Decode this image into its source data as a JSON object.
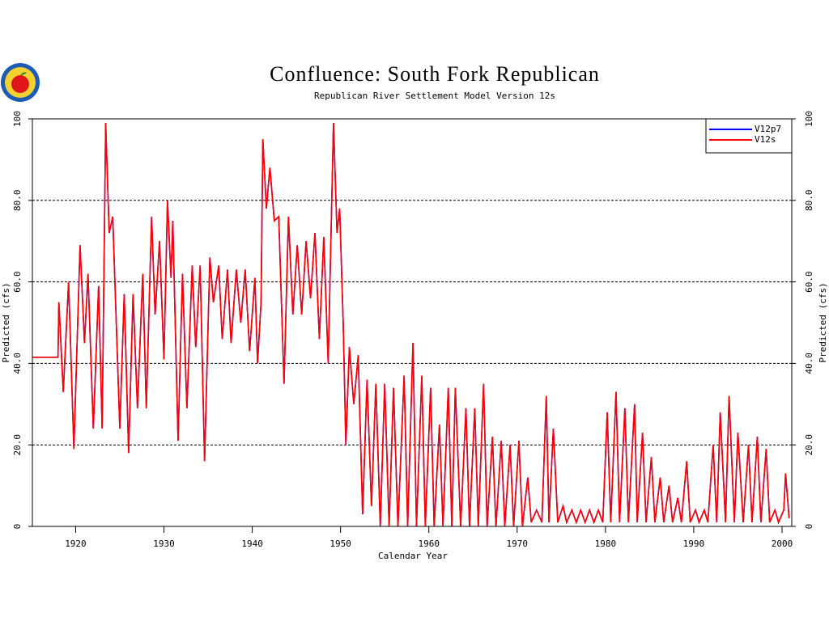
{
  "chart_data": {
    "type": "line",
    "title": "Confluence: South Fork Republican",
    "subtitle": "Republican River Settlement Model Version 12s",
    "xlabel": "Calendar Year",
    "ylabel": "Predicted (cfs)",
    "y2label": "Predicted (cfs)",
    "xlim": [
      1915.1,
      2001.1
    ],
    "xticks": [
      1920,
      1930,
      1940,
      1950,
      1960,
      1970,
      1980,
      1990,
      2000
    ],
    "ylim": [
      0,
      100
    ],
    "yticks": [
      0,
      {
        "value": 20,
        "label": "20.0"
      },
      {
        "value": 40,
        "label": "40.0"
      },
      {
        "value": 60,
        "label": "60.0"
      },
      {
        "value": 80,
        "label": "80.0"
      },
      100
    ],
    "y2lim": [
      0,
      100
    ],
    "y2ticks": [
      0,
      {
        "value": 20,
        "label": "20.0"
      },
      {
        "value": 40,
        "label": "40.0"
      },
      {
        "value": 60,
        "label": "60.0"
      },
      {
        "value": 80,
        "label": "80.0"
      },
      100
    ],
    "grid": true,
    "legend": "upper right",
    "x": [
      1915.1,
      1918.0,
      1918.1,
      1918.6,
      1919.2,
      1919.8,
      1920.5,
      1921.0,
      1921.4,
      1922.0,
      1922.6,
      1923.0,
      1923.4,
      1923.8,
      1924.2,
      1925.0,
      1925.5,
      1926.0,
      1926.5,
      1927.0,
      1927.6,
      1928.0,
      1928.6,
      1929.0,
      1929.5,
      1930.0,
      1930.4,
      1930.8,
      1931.0,
      1931.6,
      1932.1,
      1932.6,
      1933.2,
      1933.6,
      1934.1,
      1934.6,
      1935.2,
      1935.6,
      1936.2,
      1936.6,
      1937.2,
      1937.6,
      1938.2,
      1938.7,
      1939.2,
      1939.7,
      1940.3,
      1940.6,
      1941.0,
      1941.2,
      1941.6,
      1942.0,
      1942.5,
      1943.0,
      1943.6,
      1944.1,
      1944.6,
      1945.1,
      1945.6,
      1946.1,
      1946.6,
      1947.1,
      1947.6,
      1948.1,
      1948.6,
      1949.2,
      1949.6,
      1949.9,
      1950.3,
      1950.6,
      1951.0,
      1951.5,
      1952.0,
      1952.5,
      1953.0,
      1953.5,
      1954.0,
      1954.5,
      1955.0,
      1955.5,
      1956.0,
      1956.5,
      1957.2,
      1957.6,
      1958.2,
      1958.6,
      1959.2,
      1959.6,
      1960.2,
      1960.6,
      1961.2,
      1961.6,
      1962.2,
      1962.6,
      1963.0,
      1963.6,
      1964.2,
      1964.6,
      1965.2,
      1965.6,
      1966.2,
      1966.6,
      1967.2,
      1967.6,
      1968.2,
      1968.6,
      1969.2,
      1969.6,
      1970.2,
      1970.6,
      1971.2,
      1971.6,
      1972.2,
      1972.8,
      1973.3,
      1973.6,
      1974.1,
      1974.6,
      1975.2,
      1975.6,
      1976.2,
      1976.7,
      1977.2,
      1977.7,
      1978.2,
      1978.7,
      1979.2,
      1979.7,
      1980.2,
      1980.6,
      1981.2,
      1981.6,
      1982.2,
      1982.6,
      1983.3,
      1983.6,
      1984.2,
      1984.6,
      1985.2,
      1985.6,
      1986.2,
      1986.6,
      1987.2,
      1987.6,
      1988.2,
      1988.6,
      1989.2,
      1989.6,
      1990.2,
      1990.6,
      1991.2,
      1991.6,
      1992.2,
      1992.6,
      1993.0,
      1993.6,
      1994.0,
      1994.6,
      1995.0,
      1995.6,
      1996.2,
      1996.6,
      1997.2,
      1997.6,
      1998.2,
      1998.6,
      1999.2,
      1999.6,
      2000.2,
      2000.4,
      2000.8
    ],
    "series": [
      {
        "name": "V12p7",
        "color": "#0000ff",
        "values": [
          41.5,
          41.5,
          55,
          33,
          60,
          19,
          69,
          45,
          62,
          24,
          59,
          24,
          99,
          72,
          76,
          24,
          57,
          18,
          57,
          29,
          62,
          29,
          76,
          52,
          70,
          41,
          80,
          61,
          75,
          21,
          62,
          29,
          64,
          44,
          64,
          16,
          66,
          55,
          64,
          46,
          63,
          45,
          63,
          50,
          63,
          43,
          61,
          40,
          55,
          95,
          78,
          88,
          75,
          76,
          35,
          76,
          52,
          69,
          52,
          70,
          56,
          72,
          46,
          71,
          40,
          99,
          72,
          78,
          50,
          20,
          44,
          30,
          42,
          3,
          36,
          5,
          35,
          0,
          35,
          0,
          34,
          0,
          37,
          0,
          45,
          0,
          37,
          0,
          34,
          0,
          25,
          0,
          34,
          0,
          34,
          0,
          29,
          0,
          29,
          0,
          35,
          0,
          22,
          0,
          21,
          0,
          20,
          0,
          21,
          0,
          12,
          1,
          4,
          1,
          32,
          1,
          24,
          1,
          5,
          1,
          4,
          1,
          4,
          1,
          4,
          1,
          4,
          1,
          28,
          1,
          33,
          1,
          29,
          1,
          30,
          1,
          23,
          1,
          17,
          1,
          12,
          1,
          10,
          1,
          7,
          1,
          16,
          1,
          4,
          1,
          4,
          1,
          20,
          1,
          28,
          1,
          32,
          1,
          23,
          1,
          20,
          1,
          22,
          1,
          19,
          1,
          4,
          1,
          4,
          13,
          2
        ]
      },
      {
        "name": "V12s",
        "color": "#ff0000",
        "values": [
          41.5,
          41.5,
          55,
          33,
          60,
          19,
          69,
          45,
          62,
          24,
          59,
          24,
          99,
          72,
          76,
          24,
          57,
          18,
          57,
          29,
          62,
          29,
          76,
          52,
          70,
          41,
          80,
          61,
          75,
          21,
          62,
          29,
          64,
          44,
          64,
          16,
          66,
          55,
          64,
          46,
          63,
          45,
          63,
          50,
          63,
          43,
          61,
          40,
          55,
          95,
          78,
          88,
          75,
          76,
          35,
          76,
          52,
          69,
          52,
          70,
          56,
          72,
          46,
          71,
          40,
          99,
          72,
          78,
          50,
          20,
          44,
          30,
          42,
          3,
          36,
          5,
          35,
          0,
          35,
          0,
          34,
          0,
          37,
          0,
          45,
          0,
          37,
          0,
          34,
          0,
          25,
          0,
          34,
          0,
          34,
          0,
          29,
          0,
          29,
          0,
          35,
          0,
          22,
          0,
          21,
          0,
          20,
          0,
          21,
          0,
          12,
          1,
          4,
          1,
          32,
          1,
          24,
          1,
          5,
          1,
          4,
          1,
          4,
          1,
          4,
          1,
          4,
          1,
          28,
          1,
          33,
          1,
          29,
          1,
          30,
          1,
          23,
          1,
          17,
          1,
          12,
          1,
          10,
          1,
          7,
          1,
          16,
          1,
          4,
          1,
          4,
          1,
          20,
          1,
          28,
          1,
          32,
          1,
          23,
          1,
          20,
          1,
          22,
          1,
          19,
          1,
          4,
          1,
          4,
          13,
          2
        ]
      }
    ]
  }
}
